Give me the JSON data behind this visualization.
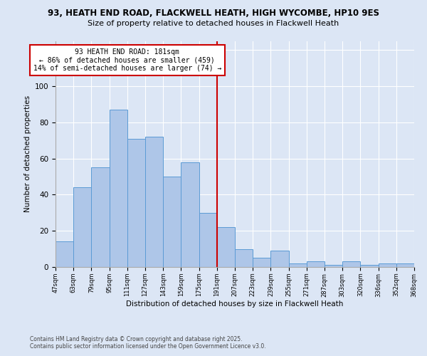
{
  "title_line1": "93, HEATH END ROAD, FLACKWELL HEATH, HIGH WYCOMBE, HP10 9ES",
  "title_line2": "Size of property relative to detached houses in Flackwell Heath",
  "xlabel": "Distribution of detached houses by size in Flackwell Heath",
  "ylabel": "Number of detached properties",
  "categories": [
    "47sqm",
    "63sqm",
    "79sqm",
    "95sqm",
    "111sqm",
    "127sqm",
    "143sqm",
    "159sqm",
    "175sqm",
    "191sqm",
    "207sqm",
    "223sqm",
    "239sqm",
    "255sqm",
    "271sqm",
    "287sqm",
    "303sqm",
    "320sqm",
    "336sqm",
    "352sqm",
    "368sqm"
  ],
  "bar_heights": [
    14,
    44,
    55,
    87,
    71,
    72,
    50,
    58,
    30,
    22,
    10,
    5,
    9,
    2,
    3,
    1,
    3,
    1,
    2,
    2
  ],
  "vline_x": 8.5,
  "bar_color": "#aec6e8",
  "bar_edge_color": "#5b9bd5",
  "vline_color": "#cc0000",
  "annotation_line1": "93 HEATH END ROAD: 181sqm",
  "annotation_line2": "← 86% of detached houses are smaller (459)",
  "annotation_line3": "14% of semi-detached houses are larger (74) →",
  "background_color": "#dce6f5",
  "ylim": [
    0,
    125
  ],
  "yticks": [
    0,
    20,
    40,
    60,
    80,
    100,
    120
  ],
  "footer_line1": "Contains HM Land Registry data © Crown copyright and database right 2025.",
  "footer_line2": "Contains public sector information licensed under the Open Government Licence v3.0."
}
